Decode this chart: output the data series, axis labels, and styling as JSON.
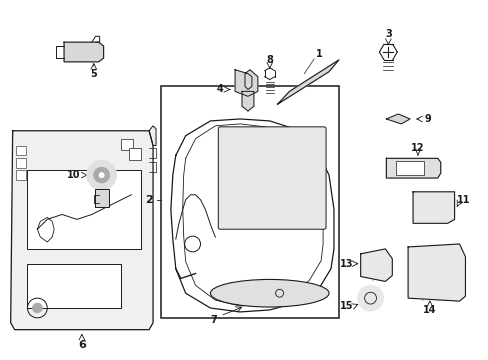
{
  "background_color": "#ffffff",
  "fig_w": 4.89,
  "fig_h": 3.6,
  "dpi": 100,
  "dark": "#1a1a1a",
  "gray_fill": "#d8d8d8",
  "light_fill": "#eeeeee",
  "white": "#ffffff"
}
